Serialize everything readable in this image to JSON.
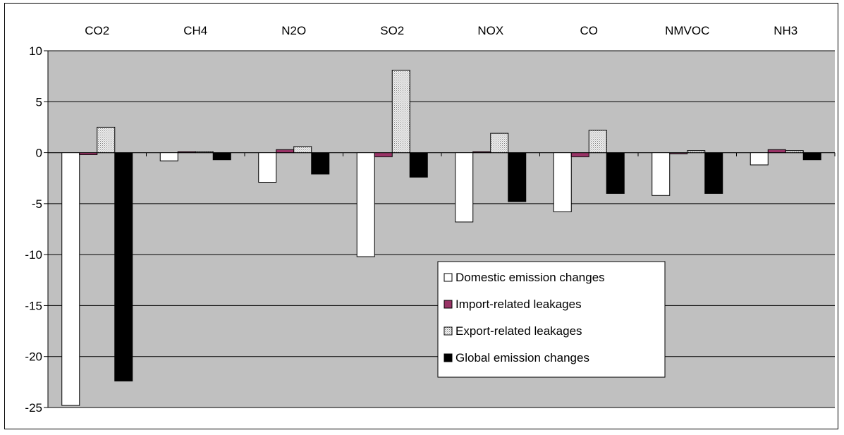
{
  "chart_data": {
    "type": "bar",
    "categories": [
      "CO2",
      "CH4",
      "N2O",
      "SO2",
      "NOX",
      "CO",
      "NMVOC",
      "NH3"
    ],
    "series": [
      {
        "name": "Domestic emission changes",
        "values": [
          -24.8,
          -0.8,
          -2.9,
          -10.2,
          -6.8,
          -5.8,
          -4.2,
          -1.2
        ],
        "color": "#ffffff",
        "pattern": "none"
      },
      {
        "name": "Import-related leakages",
        "values": [
          -0.2,
          0.1,
          0.3,
          -0.4,
          0.1,
          -0.4,
          -0.1,
          0.3
        ],
        "color": "#993366",
        "pattern": "none"
      },
      {
        "name": "Export-related leakages",
        "values": [
          2.5,
          0.1,
          0.6,
          8.1,
          1.9,
          2.2,
          0.2,
          0.2
        ],
        "color": "#c0c0c0",
        "pattern": "dotted"
      },
      {
        "name": "Global emission changes",
        "values": [
          -22.4,
          -0.7,
          -2.1,
          -2.4,
          -4.8,
          -4.0,
          -4.0,
          -0.7
        ],
        "color": "#000000",
        "pattern": "none"
      }
    ],
    "title": "",
    "xlabel": "",
    "ylabel": "",
    "ylim": [
      -25,
      10
    ],
    "yticks": [
      "10",
      "5",
      "0",
      "-5",
      "-10",
      "-15",
      "-20",
      "-25"
    ],
    "category_axis_position": "top",
    "grid": true,
    "plot_background": "#c0c0c0",
    "legend_position": "lower-right"
  }
}
